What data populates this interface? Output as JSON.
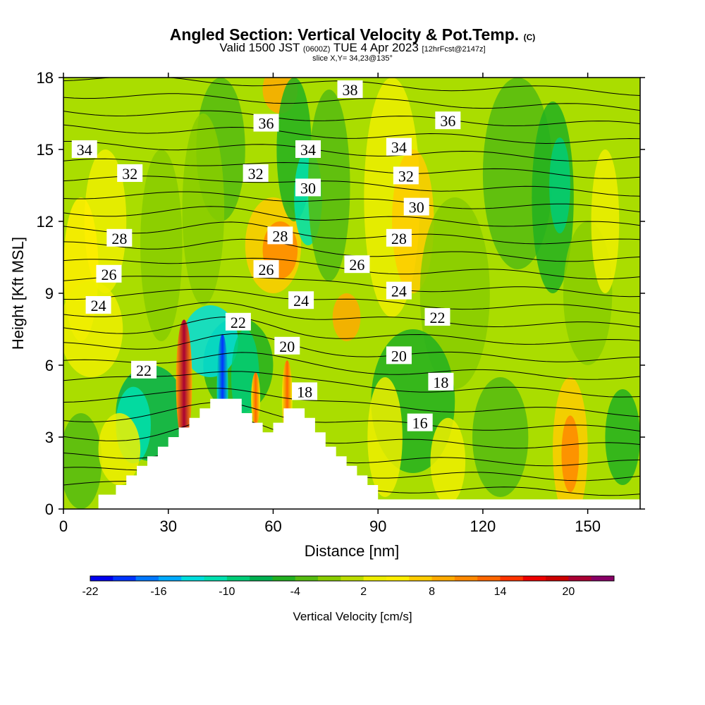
{
  "title": {
    "main": "Angled Section: Vertical Velocity & Pot.Temp.",
    "copyright": "(C)",
    "valid": "Valid 1500 JST",
    "utc": "(0600Z)",
    "date": "TUE 4 Apr 2023",
    "forecast": "[12hrFcst@2147z]",
    "slice": "slice X,Y= 34,23@135°"
  },
  "chart_data": {
    "type": "heatmap",
    "xlabel": "Distance [nm]",
    "ylabel": "Height [Kft MSL]",
    "xlim": [
      0,
      165
    ],
    "ylim": [
      0,
      18
    ],
    "xticks": [
      "0",
      "30",
      "60",
      "90",
      "120",
      "150"
    ],
    "yticks": [
      "0",
      "3",
      "6",
      "9",
      "12",
      "15",
      "18"
    ],
    "colorbar": {
      "title": "Vertical Velocity [cm/s]",
      "range": [
        -22,
        24
      ],
      "step": 2,
      "tick_labels": [
        "-22",
        "-16",
        "-10",
        "-4",
        "2",
        "8",
        "14",
        "20"
      ],
      "colors": [
        "#0000ee",
        "#0033ff",
        "#0077ff",
        "#00aaff",
        "#00dddd",
        "#00e0b0",
        "#00cc77",
        "#00b050",
        "#22b020",
        "#55bb10",
        "#88cc00",
        "#bbdd00",
        "#eeee00",
        "#ffee00",
        "#ffcc00",
        "#ffaa00",
        "#ff8800",
        "#ff6600",
        "#ff3300",
        "#ee0000",
        "#cc0000",
        "#aa0033",
        "#880066"
      ]
    },
    "terrain_kft": [
      [
        0,
        0
      ],
      [
        10,
        0
      ],
      [
        10,
        0.6
      ],
      [
        15,
        0.6
      ],
      [
        15,
        1.0
      ],
      [
        18,
        1.0
      ],
      [
        18,
        1.4
      ],
      [
        21,
        1.4
      ],
      [
        21,
        1.8
      ],
      [
        24,
        1.8
      ],
      [
        24,
        2.2
      ],
      [
        27,
        2.2
      ],
      [
        27,
        2.6
      ],
      [
        30,
        2.6
      ],
      [
        30,
        3.0
      ],
      [
        33,
        3.0
      ],
      [
        33,
        3.4
      ],
      [
        36,
        3.4
      ],
      [
        36,
        3.8
      ],
      [
        39,
        3.8
      ],
      [
        39,
        4.2
      ],
      [
        42,
        4.2
      ],
      [
        42,
        4.6
      ],
      [
        51,
        4.6
      ],
      [
        51,
        4.0
      ],
      [
        54,
        4.0
      ],
      [
        54,
        3.6
      ],
      [
        57,
        3.6
      ],
      [
        57,
        3.2
      ],
      [
        60,
        3.2
      ],
      [
        60,
        3.6
      ],
      [
        63,
        3.6
      ],
      [
        63,
        4.2
      ],
      [
        69,
        4.2
      ],
      [
        69,
        3.8
      ],
      [
        72,
        3.8
      ],
      [
        72,
        3.2
      ],
      [
        75,
        3.2
      ],
      [
        75,
        2.6
      ],
      [
        78,
        2.6
      ],
      [
        78,
        2.2
      ],
      [
        81,
        2.2
      ],
      [
        81,
        1.8
      ],
      [
        84,
        1.8
      ],
      [
        84,
        1.4
      ],
      [
        87,
        1.4
      ],
      [
        87,
        1.0
      ],
      [
        90,
        1.0
      ],
      [
        90,
        0.4
      ],
      [
        165,
        0.4
      ],
      [
        165,
        0
      ]
    ],
    "isentropes_kft": [
      [
        1.0,
        0.7
      ],
      [
        1.6,
        1.3
      ],
      [
        2.2,
        1.9
      ],
      [
        3.0,
        2.6
      ],
      [
        3.8,
        3.3
      ],
      [
        4.6,
        4.0
      ],
      [
        5.4,
        4.8
      ],
      [
        6.1,
        5.5
      ],
      [
        6.8,
        6.2
      ],
      [
        7.5,
        6.9
      ],
      [
        8.2,
        7.6
      ],
      [
        8.9,
        8.3
      ],
      [
        9.6,
        9.0
      ],
      [
        10.3,
        9.7
      ],
      [
        11.0,
        10.4
      ],
      [
        11.7,
        11.1
      ],
      [
        12.4,
        11.8
      ],
      [
        13.1,
        12.5
      ],
      [
        13.8,
        13.2
      ],
      [
        14.5,
        13.9
      ],
      [
        15.2,
        14.6
      ],
      [
        15.9,
        15.3
      ],
      [
        16.6,
        16.0
      ],
      [
        17.3,
        16.7
      ],
      [
        18.0,
        17.4
      ]
    ],
    "contour_labels": [
      {
        "text": "34",
        "x": 6,
        "y": 15
      },
      {
        "text": "32",
        "x": 19,
        "y": 14
      },
      {
        "text": "28",
        "x": 16,
        "y": 11.3
      },
      {
        "text": "26",
        "x": 13,
        "y": 9.8
      },
      {
        "text": "24",
        "x": 10,
        "y": 8.5
      },
      {
        "text": "22",
        "x": 23,
        "y": 5.8
      },
      {
        "text": "36",
        "x": 58,
        "y": 16.1
      },
      {
        "text": "32",
        "x": 55,
        "y": 14
      },
      {
        "text": "34",
        "x": 70,
        "y": 15
      },
      {
        "text": "30",
        "x": 70,
        "y": 13.4
      },
      {
        "text": "28",
        "x": 62,
        "y": 11.4
      },
      {
        "text": "26",
        "x": 58,
        "y": 10
      },
      {
        "text": "24",
        "x": 68,
        "y": 8.7
      },
      {
        "text": "22",
        "x": 50,
        "y": 7.8
      },
      {
        "text": "20",
        "x": 64,
        "y": 6.8
      },
      {
        "text": "18",
        "x": 69,
        "y": 4.9
      },
      {
        "text": "38",
        "x": 82,
        "y": 17.5
      },
      {
        "text": "36",
        "x": 110,
        "y": 16.2
      },
      {
        "text": "34",
        "x": 96,
        "y": 15.1
      },
      {
        "text": "32",
        "x": 98,
        "y": 13.9
      },
      {
        "text": "30",
        "x": 101,
        "y": 12.6
      },
      {
        "text": "28",
        "x": 96,
        "y": 11.3
      },
      {
        "text": "26",
        "x": 84,
        "y": 10.2
      },
      {
        "text": "24",
        "x": 96,
        "y": 9.1
      },
      {
        "text": "22",
        "x": 107,
        "y": 8.0
      },
      {
        "text": "20",
        "x": 96,
        "y": 6.4
      },
      {
        "text": "18",
        "x": 108,
        "y": 5.3
      },
      {
        "text": "16",
        "x": 102,
        "y": 3.6
      }
    ]
  }
}
